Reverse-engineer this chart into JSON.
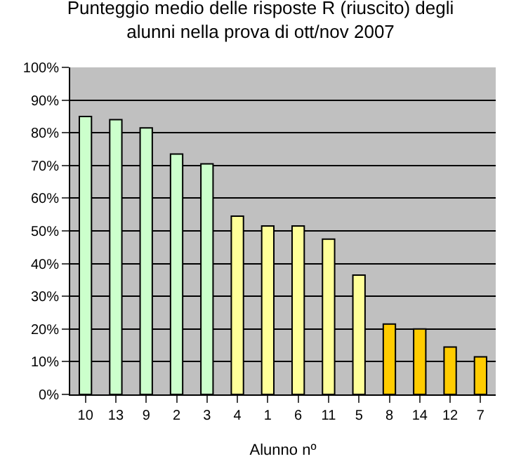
{
  "chart_data": {
    "type": "bar",
    "title": "Punteggio medio delle risposte R (riuscito) degli alunni nella prova di ott/nov 2007",
    "xlabel": "Alunno nº",
    "categories": [
      "10",
      "13",
      "9",
      "2",
      "3",
      "4",
      "1",
      "6",
      "11",
      "5",
      "8",
      "14",
      "12",
      "7"
    ],
    "values": [
      85,
      84,
      81.5,
      73.5,
      70.5,
      54.5,
      51.5,
      51.5,
      47.5,
      36.5,
      21.5,
      20,
      14.5,
      11.5
    ],
    "colors": [
      "#ccffcc",
      "#ccffcc",
      "#ccffcc",
      "#ccffcc",
      "#ccffcc",
      "#ffff99",
      "#ffff99",
      "#ffff99",
      "#ffff99",
      "#ffff99",
      "#ffcc00",
      "#ffcc00",
      "#ffcc00",
      "#ffcc00"
    ],
    "ylim": [
      0,
      100
    ],
    "yticks": [
      {
        "value": 0,
        "label": "0%"
      },
      {
        "value": 10,
        "label": "10%"
      },
      {
        "value": 20,
        "label": "20%"
      },
      {
        "value": 30,
        "label": "30%"
      },
      {
        "value": 40,
        "label": "40%"
      },
      {
        "value": 50,
        "label": "50%"
      },
      {
        "value": 60,
        "label": "60%"
      },
      {
        "value": 70,
        "label": "70%"
      },
      {
        "value": 80,
        "label": "80%"
      },
      {
        "value": 90,
        "label": "90%"
      },
      {
        "value": 100,
        "label": "100%"
      }
    ],
    "grid": "y"
  }
}
